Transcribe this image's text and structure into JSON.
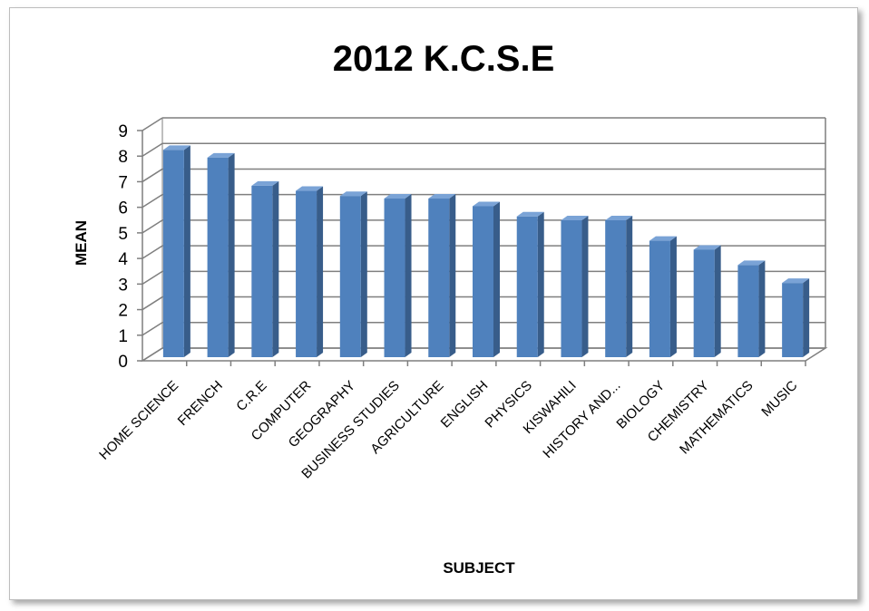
{
  "chart_data": {
    "type": "bar",
    "title": "2012 K.C.S.E",
    "xlabel": "SUBJECT",
    "ylabel": "MEAN",
    "categories": [
      "HOME SCIENCE",
      "FRENCH",
      "C.R.E",
      "COMPUTER",
      "GEOGRAPHY",
      "BUSINESS STUDIES",
      "AGRICULTURE",
      "ENGLISH",
      "PHYSICS",
      "KISWAHILI",
      "HISTORY AND...",
      "BIOLOGY",
      "CHEMISTRY",
      "MATHEMATICS",
      "MUSIC"
    ],
    "values": [
      8.1,
      7.8,
      6.7,
      6.5,
      6.3,
      6.2,
      6.2,
      5.9,
      5.5,
      5.35,
      5.35,
      4.55,
      4.2,
      3.6,
      2.9
    ],
    "ylim": [
      0,
      9
    ],
    "yticks": [
      0,
      1,
      2,
      3,
      4,
      5,
      6,
      7,
      8,
      9
    ],
    "grid": true,
    "three_d": true,
    "bar_color": "#4f81bd",
    "bar_color_dark": "#385d8a",
    "bar_color_top": "#7aa3d6",
    "gridline_color": "#7f7f7f"
  }
}
